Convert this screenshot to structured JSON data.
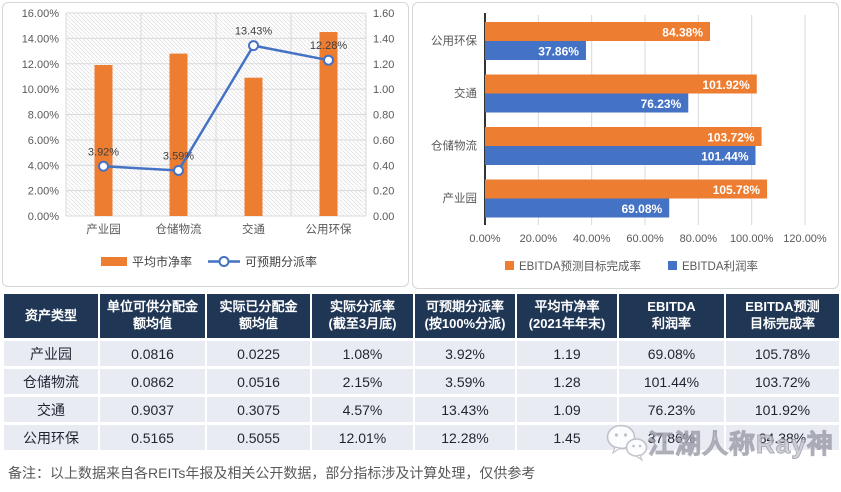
{
  "colors": {
    "orange": "#ED7D31",
    "blue": "#4472C4",
    "header_bg": "#1F3655",
    "row_bg": "#E9EBF3",
    "grid": "#D9D9D9",
    "axis_text": "#595959",
    "data_label": "#404040",
    "bar_label_white": "#FFFFFF",
    "note_text": "#595959",
    "watermark_gray": "#A9A9B3"
  },
  "chart_data": [
    {
      "type": "bar",
      "subtype": "combo-bar-line",
      "categories": [
        "产业园",
        "仓储物流",
        "交通",
        "公用环保"
      ],
      "series": [
        {
          "name": "平均市净率",
          "kind": "bar",
          "axis": "right",
          "values": [
            1.19,
            1.28,
            1.09,
            1.45
          ]
        },
        {
          "name": "可预期分派率",
          "kind": "line",
          "axis": "left",
          "values": [
            3.92,
            3.59,
            13.43,
            12.28
          ],
          "labels": [
            "3.92%",
            "3.59%",
            "13.43%",
            "12.28%"
          ]
        }
      ],
      "left_axis": {
        "min": 0,
        "max": 16,
        "step": 2,
        "ticks": [
          "16.00%",
          "14.00%",
          "12.00%",
          "10.00%",
          "8.00%",
          "6.00%",
          "4.00%",
          "2.00%",
          "0.00%"
        ]
      },
      "right_axis": {
        "min": 0,
        "max": 1.6,
        "step": 0.2,
        "ticks": [
          "1.60",
          "1.40",
          "1.20",
          "1.00",
          "0.80",
          "0.60",
          "0.40",
          "0.20",
          "0.00"
        ]
      },
      "legend": [
        "平均市净率",
        "可预期分派率"
      ],
      "grid": true,
      "plot_fill": "diagonal-hatch"
    },
    {
      "type": "bar",
      "subtype": "horizontal-grouped",
      "categories": [
        "公用环保",
        "交通",
        "仓储物流",
        "产业园"
      ],
      "series": [
        {
          "name": "EBITDA预测目标完成率",
          "values": [
            84.38,
            101.92,
            103.72,
            105.78
          ],
          "labels": [
            "84.38%",
            "101.92%",
            "103.72%",
            "105.78%"
          ]
        },
        {
          "name": "EBITDA利润率",
          "values": [
            37.86,
            76.23,
            101.44,
            69.08
          ],
          "labels": [
            "37.86%",
            "76.23%",
            "101.44%",
            "69.08%"
          ]
        }
      ],
      "x_axis": {
        "min": 0,
        "max": 120,
        "step": 20,
        "ticks": [
          "0.00%",
          "20.00%",
          "40.00%",
          "60.00%",
          "80.00%",
          "100.00%",
          "120.00%"
        ]
      },
      "legend": [
        "EBITDA预测目标完成率",
        "EBITDA利润率"
      ],
      "grid": true,
      "legend_position": "bottom"
    }
  ],
  "table": {
    "headers": [
      "资产类型",
      "单位可供分配金\n额均值",
      "实际已分配金\n额均值",
      "实际分派率\n(截至3月底)",
      "可预期分派率\n(按100%分派)",
      "平均市净率\n(2021年年末)",
      "EBITDA\n利润率",
      "EBITDA预测\n目标完成率"
    ],
    "rows": [
      [
        "产业园",
        "0.0816",
        "0.0225",
        "1.08%",
        "3.92%",
        "1.19",
        "69.08%",
        "105.78%"
      ],
      [
        "仓储物流",
        "0.0862",
        "0.0516",
        "2.15%",
        "3.59%",
        "1.28",
        "101.44%",
        "103.72%"
      ],
      [
        "交通",
        "0.9037",
        "0.3075",
        "4.57%",
        "13.43%",
        "1.09",
        "76.23%",
        "101.92%"
      ],
      [
        "公用环保",
        "0.5165",
        "0.5055",
        "12.01%",
        "12.28%",
        "1.45",
        "37.86%",
        "84.38%"
      ]
    ]
  },
  "note": {
    "text": "备注：以上数据来自各REITs年报及相关公开数据，部分指标涉及计算处理，仅供参考"
  },
  "watermark": {
    "text": "江湖人称Ray神",
    "icon": "wechat-icon"
  }
}
